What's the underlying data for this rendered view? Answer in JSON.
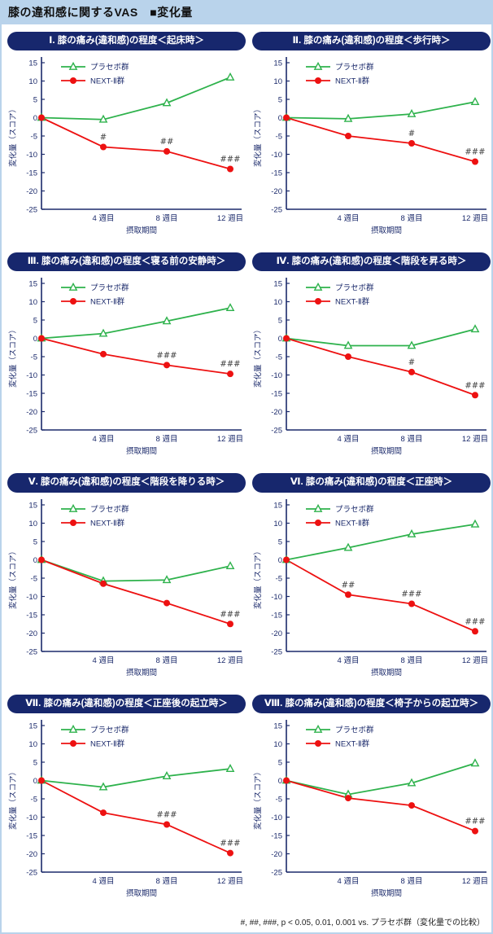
{
  "page": {
    "header": "膝の違和感に関するVAS　■変化量",
    "footnote": "#, ##, ###, p < 0.05, 0.01, 0.001 vs. プラセボ群（変化量での比較）"
  },
  "colors": {
    "header_bg": "#b9d3eb",
    "title_pill_bg": "#17276d",
    "axis": "#1b2a6b",
    "placebo_green": "#2eb24c",
    "next2_red": "#ed1111",
    "annotation": "#444444"
  },
  "chart_data": [
    {
      "type": "line",
      "title": "Ⅰ. 膝の痛み(違和感)の程度＜起床時＞",
      "x": [
        0,
        4,
        8,
        12
      ],
      "x_ticklabels": [
        "4 週目",
        "8 週目",
        "12 週目"
      ],
      "xlabel": "摂取期間",
      "ylabel": "変化量（スコア）",
      "ylim": [
        -25,
        15
      ],
      "ytick_step": 5,
      "grid": false,
      "legend_position": "top-left",
      "series": [
        {
          "name": "プラセボ群",
          "marker": "triangle-open",
          "color": "#2eb24c",
          "values": [
            0,
            -0.5,
            4,
            11
          ],
          "annotations": [
            "",
            "",
            "",
            ""
          ]
        },
        {
          "name": "NEXT-Ⅱ群",
          "marker": "circle-filled",
          "color": "#ed1111",
          "values": [
            0,
            -8,
            -9.2,
            -14
          ],
          "annotations": [
            "",
            "#",
            "##",
            "###"
          ]
        }
      ]
    },
    {
      "type": "line",
      "title": "Ⅱ. 膝の痛み(違和感)の程度＜歩行時＞",
      "x": [
        0,
        4,
        8,
        12
      ],
      "x_ticklabels": [
        "4 週目",
        "8 週目",
        "12 週目"
      ],
      "xlabel": "摂取期間",
      "ylabel": "変化量（スコア）",
      "ylim": [
        -25,
        15
      ],
      "ytick_step": 5,
      "grid": false,
      "legend_position": "top-left",
      "series": [
        {
          "name": "プラセボ群",
          "marker": "triangle-open",
          "color": "#2eb24c",
          "values": [
            0,
            -0.3,
            1,
            4.3
          ],
          "annotations": [
            "",
            "",
            "",
            ""
          ]
        },
        {
          "name": "NEXT-Ⅱ群",
          "marker": "circle-filled",
          "color": "#ed1111",
          "values": [
            0,
            -5,
            -7,
            -12
          ],
          "annotations": [
            "",
            "",
            "#",
            "###"
          ]
        }
      ]
    },
    {
      "type": "line",
      "title": "Ⅲ. 膝の痛み(違和感)の程度＜寝る前の安静時＞",
      "x": [
        0,
        4,
        8,
        12
      ],
      "x_ticklabels": [
        "4 週目",
        "8 週目",
        "12 週目"
      ],
      "xlabel": "摂取期間",
      "ylabel": "変化量（スコア）",
      "ylim": [
        -25,
        15
      ],
      "ytick_step": 5,
      "grid": false,
      "legend_position": "top-left",
      "series": [
        {
          "name": "プラセボ群",
          "marker": "triangle-open",
          "color": "#2eb24c",
          "values": [
            0,
            1.3,
            4.7,
            8.3
          ],
          "annotations": [
            "",
            "",
            "",
            ""
          ]
        },
        {
          "name": "NEXT-Ⅱ群",
          "marker": "circle-filled",
          "color": "#ed1111",
          "values": [
            0,
            -4.3,
            -7.3,
            -9.7
          ],
          "annotations": [
            "",
            "",
            "###",
            "###"
          ]
        }
      ]
    },
    {
      "type": "line",
      "title": "Ⅳ. 膝の痛み(違和感)の程度＜階段を昇る時＞",
      "x": [
        0,
        4,
        8,
        12
      ],
      "x_ticklabels": [
        "4 週目",
        "8 週目",
        "12 週目"
      ],
      "xlabel": "摂取期間",
      "ylabel": "変化量（スコア）",
      "ylim": [
        -25,
        15
      ],
      "ytick_step": 5,
      "grid": false,
      "legend_position": "top-left",
      "series": [
        {
          "name": "プラセボ群",
          "marker": "triangle-open",
          "color": "#2eb24c",
          "values": [
            0,
            -2,
            -2,
            2.5
          ],
          "annotations": [
            "",
            "",
            "",
            ""
          ]
        },
        {
          "name": "NEXT-Ⅱ群",
          "marker": "circle-filled",
          "color": "#ed1111",
          "values": [
            0,
            -5,
            -9.2,
            -15.5
          ],
          "annotations": [
            "",
            "",
            "#",
            "###"
          ]
        }
      ]
    },
    {
      "type": "line",
      "title": "Ⅴ. 膝の痛み(違和感)の程度＜階段を降りる時＞",
      "x": [
        0,
        4,
        8,
        12
      ],
      "x_ticklabels": [
        "4 週目",
        "8 週目",
        "12 週目"
      ],
      "xlabel": "摂取期間",
      "ylabel": "変化量（スコア）",
      "ylim": [
        -25,
        15
      ],
      "ytick_step": 5,
      "grid": false,
      "legend_position": "top-left",
      "series": [
        {
          "name": "プラセボ群",
          "marker": "triangle-open",
          "color": "#2eb24c",
          "values": [
            0,
            -5.8,
            -5.5,
            -1.7
          ],
          "annotations": [
            "",
            "",
            "",
            ""
          ]
        },
        {
          "name": "NEXT-Ⅱ群",
          "marker": "circle-filled",
          "color": "#ed1111",
          "values": [
            0,
            -6.5,
            -11.8,
            -17.5
          ],
          "annotations": [
            "",
            "",
            "",
            "###"
          ]
        }
      ]
    },
    {
      "type": "line",
      "title": "Ⅵ. 膝の痛み(違和感)の程度＜正座時＞",
      "x": [
        0,
        4,
        8,
        12
      ],
      "x_ticklabels": [
        "4 週目",
        "8 週目",
        "12 週目"
      ],
      "xlabel": "摂取期間",
      "ylabel": "変化量（スコア）",
      "ylim": [
        -25,
        15
      ],
      "ytick_step": 5,
      "grid": false,
      "legend_position": "top-left",
      "series": [
        {
          "name": "プラセボ群",
          "marker": "triangle-open",
          "color": "#2eb24c",
          "values": [
            0,
            3.3,
            7,
            9.7
          ],
          "annotations": [
            "",
            "",
            "",
            ""
          ]
        },
        {
          "name": "NEXT-Ⅱ群",
          "marker": "circle-filled",
          "color": "#ed1111",
          "values": [
            0,
            -9.5,
            -12,
            -19.5
          ],
          "annotations": [
            "",
            "##",
            "###",
            "###"
          ]
        }
      ]
    },
    {
      "type": "line",
      "title": "Ⅶ. 膝の痛み(違和感)の程度＜正座後の起立時＞",
      "x": [
        0,
        4,
        8,
        12
      ],
      "x_ticklabels": [
        "4 週目",
        "8 週目",
        "12 週目"
      ],
      "xlabel": "摂取期間",
      "ylabel": "変化量（スコア）",
      "ylim": [
        -25,
        15
      ],
      "ytick_step": 5,
      "grid": false,
      "legend_position": "top-left",
      "series": [
        {
          "name": "プラセボ群",
          "marker": "triangle-open",
          "color": "#2eb24c",
          "values": [
            0,
            -1.8,
            1.2,
            3.2
          ],
          "annotations": [
            "",
            "",
            "",
            ""
          ]
        },
        {
          "name": "NEXT-Ⅱ群",
          "marker": "circle-filled",
          "color": "#ed1111",
          "values": [
            0,
            -8.8,
            -12,
            -19.8
          ],
          "annotations": [
            "",
            "",
            "###",
            "###"
          ]
        }
      ]
    },
    {
      "type": "line",
      "title": "Ⅷ. 膝の痛み(違和感)の程度＜椅子からの起立時＞",
      "x": [
        0,
        4,
        8,
        12
      ],
      "x_ticklabels": [
        "4 週目",
        "8 週目",
        "12 週目"
      ],
      "xlabel": "摂取期間",
      "ylabel": "変化量（スコア）",
      "ylim": [
        -25,
        15
      ],
      "ytick_step": 5,
      "grid": false,
      "legend_position": "top-left",
      "series": [
        {
          "name": "プラセボ群",
          "marker": "triangle-open",
          "color": "#2eb24c",
          "values": [
            0,
            -3.8,
            -0.7,
            4.7
          ],
          "annotations": [
            "",
            "",
            "",
            ""
          ]
        },
        {
          "name": "NEXT-Ⅱ群",
          "marker": "circle-filled",
          "color": "#ed1111",
          "values": [
            0,
            -4.8,
            -6.8,
            -13.8
          ],
          "annotations": [
            "",
            "",
            "",
            "###"
          ]
        }
      ]
    }
  ]
}
